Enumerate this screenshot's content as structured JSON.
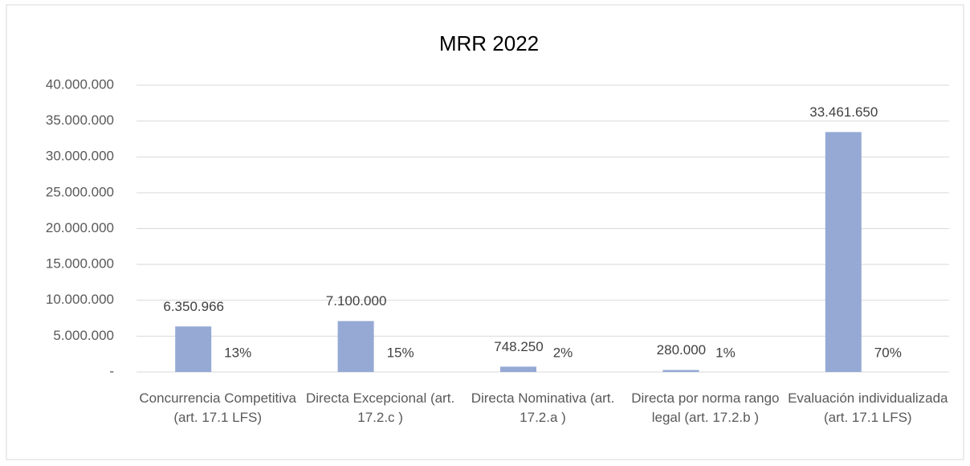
{
  "chart_data": {
    "type": "bar",
    "title": "MRR 2022",
    "categories": [
      "Concurrencia Competitiva (art. 17.1 LFS)",
      "Directa Excepcional (art. 17.2.c )",
      "Directa Nominativa (art. 17.2.a )",
      "Directa por norma rango legal  (art. 17.2.b )",
      "Evaluación individualizada (art. 17.1 LFS)"
    ],
    "values": [
      6350966,
      7100000,
      748250,
      280000,
      33461650
    ],
    "value_labels": [
      "6.350.966",
      "7.100.000",
      "748.250",
      "280.000",
      "33.461.650"
    ],
    "shares": [
      13,
      15,
      2,
      1,
      70
    ],
    "share_labels": [
      "13%",
      "15%",
      "2%",
      "1%",
      "70%"
    ],
    "color": "#95a9d4",
    "ylim": [
      0,
      40000000
    ],
    "yticks": [
      {
        "value": 0,
        "label": "-"
      },
      {
        "value": 5000000,
        "label": "5.000.000"
      },
      {
        "value": 10000000,
        "label": "10.000.000"
      },
      {
        "value": 15000000,
        "label": "15.000.000"
      },
      {
        "value": 20000000,
        "label": "20.000.000"
      },
      {
        "value": 25000000,
        "label": "25.000.000"
      },
      {
        "value": 30000000,
        "label": "30.000.000"
      },
      {
        "value": 35000000,
        "label": "35.000.000"
      },
      {
        "value": 40000000,
        "label": "40.000.000"
      }
    ],
    "grid": true
  }
}
